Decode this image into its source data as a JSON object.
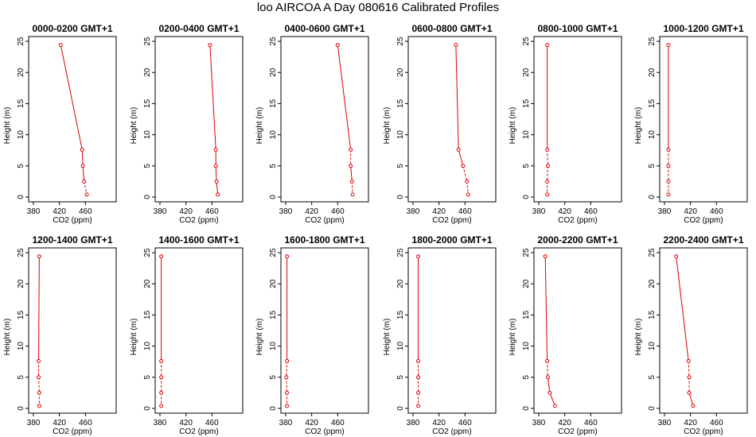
{
  "title": "loo AIRCOA A  Day 080616  Calibrated Profiles",
  "colors": {
    "profile": "#dd0000",
    "axis": "#000000"
  },
  "chart_data": [
    {
      "type": "line",
      "title": "0000-0200 GMT+1",
      "xlabel": "CO2 (ppm)",
      "ylabel": "Height (m)",
      "xlim": [
        380,
        500
      ],
      "ylim": [
        0,
        25
      ],
      "xticks": [
        380,
        420,
        460
      ],
      "yticks": [
        0,
        5,
        10,
        15,
        20,
        25
      ],
      "grid": false,
      "series": [
        {
          "heights": [
            24.4,
            7.6,
            5.0,
            2.5,
            0.4
          ],
          "co2": [
            422,
            455,
            456,
            458,
            462
          ],
          "dashed_segments": [
            3
          ]
        }
      ]
    },
    {
      "type": "line",
      "title": "0200-0400 GMT+1",
      "xlabel": "CO2 (ppm)",
      "ylabel": "Height (m)",
      "xlim": [
        380,
        500
      ],
      "ylim": [
        0,
        25
      ],
      "xticks": [
        380,
        420,
        460
      ],
      "yticks": [
        0,
        5,
        10,
        15,
        20,
        25
      ],
      "grid": false,
      "series": [
        {
          "heights": [
            24.4,
            7.6,
            5.0,
            2.5,
            0.4
          ],
          "co2": [
            457,
            466,
            466,
            467,
            469
          ],
          "dashed_segments": []
        }
      ]
    },
    {
      "type": "line",
      "title": "0400-0600 GMT+1",
      "xlabel": "CO2 (ppm)",
      "ylabel": "Height (m)",
      "xlim": [
        380,
        500
      ],
      "ylim": [
        0,
        25
      ],
      "xticks": [
        380,
        420,
        460
      ],
      "yticks": [
        0,
        5,
        10,
        15,
        20,
        25
      ],
      "grid": false,
      "series": [
        {
          "heights": [
            24.4,
            7.6,
            5.0,
            2.5,
            0.4
          ],
          "co2": [
            460,
            480,
            480,
            482,
            483
          ],
          "dashed_segments": [
            1,
            3
          ]
        }
      ]
    },
    {
      "type": "line",
      "title": "0600-0800 GMT+1",
      "xlabel": "CO2 (ppm)",
      "ylabel": "Height (m)",
      "xlim": [
        380,
        500
      ],
      "ylim": [
        0,
        25
      ],
      "xticks": [
        380,
        420,
        460
      ],
      "yticks": [
        0,
        5,
        10,
        15,
        20,
        25
      ],
      "grid": false,
      "series": [
        {
          "heights": [
            24.4,
            7.6,
            5.0,
            2.5,
            0.4
          ],
          "co2": [
            446,
            450,
            457,
            463,
            465
          ],
          "dashed_segments": [
            2,
            3
          ]
        }
      ]
    },
    {
      "type": "line",
      "title": "0800-1000 GMT+1",
      "xlabel": "CO2 (ppm)",
      "ylabel": "Height (m)",
      "xlim": [
        380,
        500
      ],
      "ylim": [
        0,
        25
      ],
      "xticks": [
        380,
        420,
        460
      ],
      "yticks": [
        0,
        5,
        10,
        15,
        20,
        25
      ],
      "grid": false,
      "series": [
        {
          "heights": [
            24.4,
            7.6,
            5.0,
            2.5,
            0.4
          ],
          "co2": [
            393,
            393,
            394,
            393,
            393
          ],
          "dashed_segments": [
            1,
            2,
            3
          ]
        }
      ]
    },
    {
      "type": "line",
      "title": "1000-1200 GMT+1",
      "xlabel": "CO2 (ppm)",
      "ylabel": "Height (m)",
      "xlim": [
        380,
        500
      ],
      "ylim": [
        0,
        25
      ],
      "xticks": [
        380,
        420,
        460
      ],
      "yticks": [
        0,
        5,
        10,
        15,
        20,
        25
      ],
      "grid": false,
      "series": [
        {
          "heights": [
            24.4,
            7.6,
            5.0,
            2.5,
            0.4
          ],
          "co2": [
            386,
            386,
            386,
            386,
            386
          ],
          "dashed_segments": [
            1,
            2,
            3
          ]
        }
      ]
    },
    {
      "type": "line",
      "title": "1200-1400 GMT+1",
      "xlabel": "CO2 (ppm)",
      "ylabel": "Height (m)",
      "xlim": [
        380,
        500
      ],
      "ylim": [
        0,
        25
      ],
      "xticks": [
        380,
        420,
        460
      ],
      "yticks": [
        0,
        5,
        10,
        15,
        20,
        25
      ],
      "grid": false,
      "series": [
        {
          "heights": [
            24.4,
            7.6,
            5.0,
            2.5,
            0.4
          ],
          "co2": [
            389,
            388,
            388,
            389,
            389
          ],
          "dashed_segments": [
            1,
            2,
            3
          ]
        }
      ]
    },
    {
      "type": "line",
      "title": "1400-1600 GMT+1",
      "xlabel": "CO2 (ppm)",
      "ylabel": "Height (m)",
      "xlim": [
        380,
        500
      ],
      "ylim": [
        0,
        25
      ],
      "xticks": [
        380,
        420,
        460
      ],
      "yticks": [
        0,
        5,
        10,
        15,
        20,
        25
      ],
      "grid": false,
      "series": [
        {
          "heights": [
            24.4,
            7.6,
            5.0,
            2.5,
            0.4
          ],
          "co2": [
            382,
            382,
            382,
            382,
            382
          ],
          "dashed_segments": [
            1,
            2,
            3
          ]
        }
      ]
    },
    {
      "type": "line",
      "title": "1600-1800 GMT+1",
      "xlabel": "CO2 (ppm)",
      "ylabel": "Height (m)",
      "xlim": [
        380,
        500
      ],
      "ylim": [
        0,
        25
      ],
      "xticks": [
        380,
        420,
        460
      ],
      "yticks": [
        0,
        5,
        10,
        15,
        20,
        25
      ],
      "grid": false,
      "series": [
        {
          "heights": [
            24.4,
            7.6,
            5.0,
            2.5,
            0.4
          ],
          "co2": [
            382,
            382,
            381,
            382,
            382
          ],
          "dashed_segments": [
            1,
            2,
            3
          ]
        }
      ]
    },
    {
      "type": "line",
      "title": "1800-2000 GMT+1",
      "xlabel": "CO2 (ppm)",
      "ylabel": "Height (m)",
      "xlim": [
        380,
        500
      ],
      "ylim": [
        0,
        25
      ],
      "xticks": [
        380,
        420,
        460
      ],
      "yticks": [
        0,
        5,
        10,
        15,
        20,
        25
      ],
      "grid": false,
      "series": [
        {
          "heights": [
            24.4,
            7.6,
            5.0,
            2.5,
            0.4
          ],
          "co2": [
            388,
            388,
            388,
            388,
            388
          ],
          "dashed_segments": [
            1,
            2,
            3
          ]
        }
      ]
    },
    {
      "type": "line",
      "title": "2000-2200 GMT+1",
      "xlabel": "CO2 (ppm)",
      "ylabel": "Height (m)",
      "xlim": [
        380,
        500
      ],
      "ylim": [
        0,
        25
      ],
      "xticks": [
        380,
        420,
        460
      ],
      "yticks": [
        0,
        5,
        10,
        15,
        20,
        25
      ],
      "grid": false,
      "series": [
        {
          "heights": [
            24.4,
            7.6,
            5.0,
            2.5,
            0.4
          ],
          "co2": [
            390,
            393,
            394,
            397,
            405
          ],
          "dashed_segments": [
            1
          ]
        }
      ]
    },
    {
      "type": "line",
      "title": "2200-2400 GMT+1",
      "xlabel": "CO2 (ppm)",
      "ylabel": "Height (m)",
      "xlim": [
        380,
        500
      ],
      "ylim": [
        0,
        25
      ],
      "xticks": [
        380,
        420,
        460
      ],
      "yticks": [
        0,
        5,
        10,
        15,
        20,
        25
      ],
      "grid": false,
      "series": [
        {
          "heights": [
            24.4,
            7.6,
            5.0,
            2.5,
            0.4
          ],
          "co2": [
            398,
            417,
            418,
            418,
            424
          ],
          "dashed_segments": [
            1,
            2
          ]
        }
      ]
    }
  ]
}
